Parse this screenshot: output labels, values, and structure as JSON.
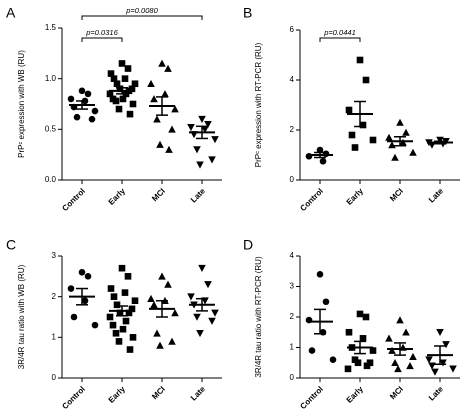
{
  "chart_data": [
    {
      "type": "dot",
      "panel": "A",
      "ylabel": "PrPᶜ expression with WB (RU)",
      "categories": [
        "Control",
        "Early",
        "MCI",
        "Late"
      ],
      "markers": [
        "circle",
        "square",
        "triangle-up",
        "triangle-down"
      ],
      "color": "#000000",
      "values": [
        [
          0.88,
          0.85,
          0.8,
          0.78,
          0.72,
          0.68,
          0.62,
          0.6
        ],
        [
          1.15,
          1.1,
          1.05,
          1.0,
          1.0,
          0.95,
          0.95,
          0.9,
          0.9,
          0.88,
          0.85,
          0.85,
          0.8,
          0.8,
          0.78,
          0.75,
          0.7,
          0.65
        ],
        [
          1.15,
          1.1,
          0.95,
          0.85,
          0.8,
          0.7,
          0.6,
          0.5,
          0.35,
          0.3
        ],
        [
          0.6,
          0.55,
          0.52,
          0.5,
          0.45,
          0.4,
          0.3,
          0.2,
          0.15
        ]
      ],
      "means": [
        0.74,
        0.88,
        0.73,
        0.47
      ],
      "sems": [
        0.04,
        0.03,
        0.09,
        0.06
      ],
      "ylim": [
        0,
        1.5
      ],
      "yticks": [
        {
          "value": 0,
          "label": "0.0"
        },
        {
          "value": 0.5,
          "label": "0.5"
        },
        {
          "value": 1,
          "label": "1.0"
        },
        {
          "value": 1.5,
          "label": "1.5"
        }
      ],
      "annotations": [
        "p=0.0316",
        "p=0.0080"
      ]
    },
    {
      "type": "dot",
      "panel": "B",
      "ylabel": "PrPᶜ expression with RT-PCR (RU)",
      "categories": [
        "Control",
        "Early",
        "MCI",
        "Late"
      ],
      "markers": [
        "circle",
        "square",
        "triangle-up",
        "triangle-down"
      ],
      "color": "#000000",
      "values": [
        [
          1.2,
          1.05,
          0.95,
          0.75
        ],
        [
          4.8,
          4.0,
          2.8,
          2.2,
          1.8,
          1.6,
          1.3
        ],
        [
          2.3,
          1.9,
          1.7,
          1.5,
          1.4,
          1.1,
          0.9
        ],
        [
          1.6,
          1.55,
          1.5,
          1.45,
          1.4
        ]
      ],
      "means": [
        1.0,
        2.64,
        1.55,
        1.5
      ],
      "sems": [
        0.1,
        0.5,
        0.18,
        0.05
      ],
      "ylim": [
        0,
        6
      ],
      "yticks": [
        0,
        2,
        4,
        6
      ],
      "annotations": [
        "p=0.0441"
      ]
    },
    {
      "type": "dot",
      "panel": "C",
      "ylabel": "3R/4R tau ratio with WB (RU)",
      "categories": [
        "Control",
        "Early",
        "MCI",
        "Late"
      ],
      "markers": [
        "circle",
        "square",
        "triangle-up",
        "triangle-down"
      ],
      "color": "#000000",
      "values": [
        [
          2.6,
          2.5,
          2.2,
          1.9,
          1.5,
          1.3
        ],
        [
          2.7,
          2.5,
          2.2,
          2.1,
          2.0,
          1.9,
          1.8,
          1.7,
          1.6,
          1.6,
          1.5,
          1.4,
          1.3,
          1.2,
          1.1,
          1.0,
          0.9,
          0.7
        ],
        [
          2.5,
          2.3,
          1.95,
          1.9,
          1.8,
          1.6,
          1.1,
          0.9,
          0.8
        ],
        [
          2.7,
          2.3,
          2.0,
          1.9,
          1.8,
          1.6,
          1.5,
          1.4,
          1.1
        ]
      ],
      "means": [
        2.0,
        1.65,
        1.7,
        1.8
      ],
      "sems": [
        0.2,
        0.12,
        0.2,
        0.15
      ],
      "ylim": [
        0,
        3
      ],
      "yticks": [
        0,
        1,
        2,
        3
      ],
      "annotations": []
    },
    {
      "type": "dot",
      "panel": "D",
      "ylabel": "3R/4R tau ratio with RT-PCR (RU)",
      "categories": [
        "Control",
        "Early",
        "MCI",
        "Late"
      ],
      "markers": [
        "circle",
        "square",
        "triangle-up",
        "triangle-down"
      ],
      "color": "#000000",
      "values": [
        [
          3.4,
          2.5,
          1.9,
          1.5,
          0.9,
          0.6
        ],
        [
          2.1,
          2.0,
          1.5,
          1.3,
          1.0,
          0.9,
          0.6,
          0.5,
          0.5,
          0.4,
          0.3
        ],
        [
          1.9,
          1.5,
          1.3,
          1.0,
          0.9,
          0.7,
          0.5,
          0.4,
          0.3
        ],
        [
          1.5,
          1.1,
          0.6,
          0.5,
          0.4,
          0.3,
          0.2
        ]
      ],
      "means": [
        1.85,
        1.0,
        0.95,
        0.75
      ],
      "sems": [
        0.4,
        0.2,
        0.2,
        0.3
      ],
      "ylim": [
        0,
        4
      ],
      "yticks": [
        0,
        1,
        2,
        3,
        4
      ],
      "annotations": []
    }
  ]
}
